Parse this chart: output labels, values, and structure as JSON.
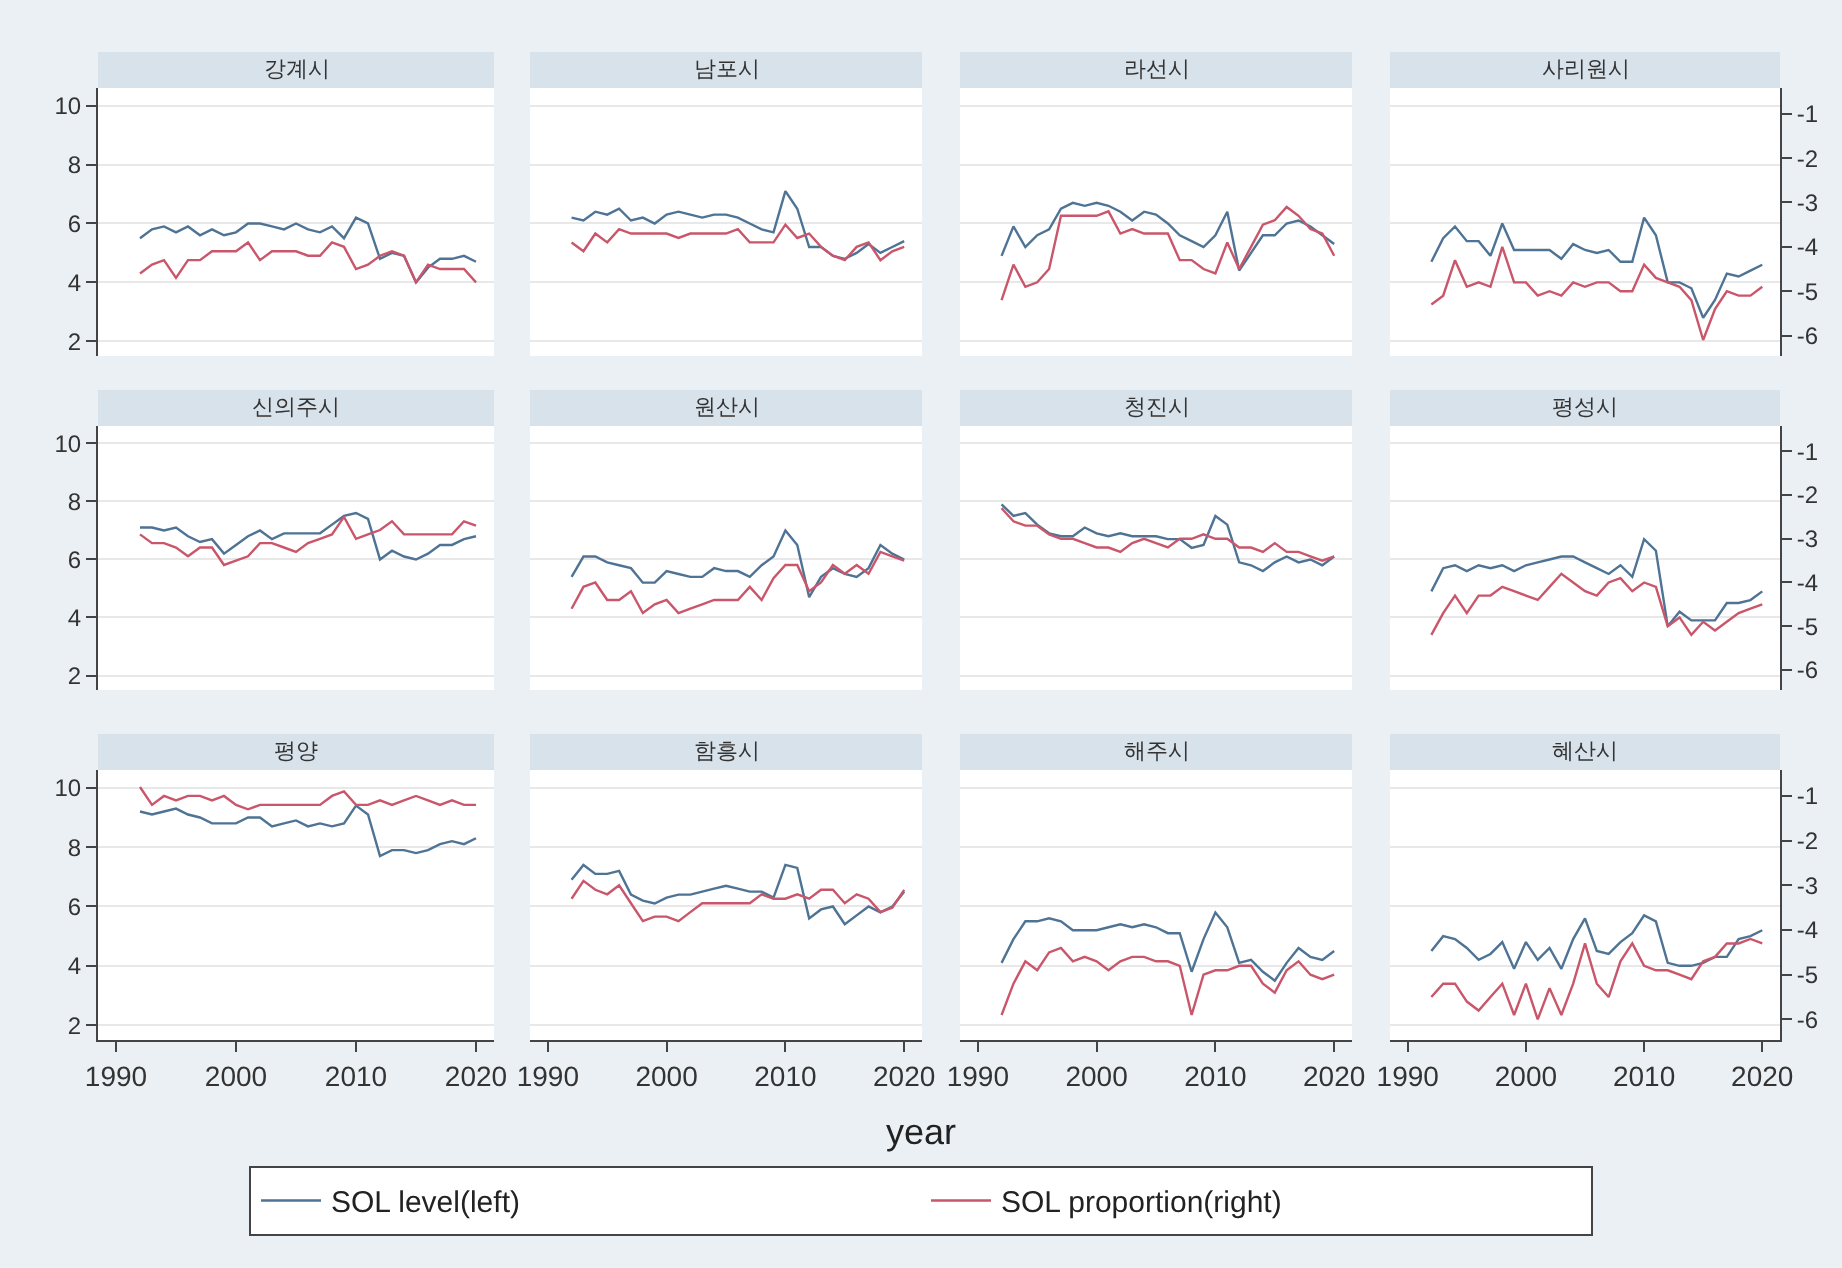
{
  "chart_data": [
    {
      "type": "line",
      "title": "강계시",
      "x": [
        1992,
        1993,
        1994,
        1995,
        1996,
        1997,
        1998,
        1999,
        2000,
        2001,
        2002,
        2003,
        2004,
        2005,
        2006,
        2007,
        2008,
        2009,
        2010,
        2011,
        2012,
        2013,
        2014,
        2015,
        2016,
        2017,
        2018,
        2019,
        2020
      ],
      "xlim": [
        1988.5,
        2021.5
      ],
      "xticks": [
        1990,
        2000,
        2010,
        2020
      ],
      "ylim": [
        1.5,
        10.6
      ],
      "yticks": [
        2,
        4,
        6,
        8,
        10
      ],
      "y2lim": [
        -6.46,
        -0.42
      ],
      "grid": "y",
      "tick_labels": "y",
      "legend": "bottom",
      "series": [
        {
          "name": "SOL level(left)",
          "color": "#4e7394",
          "values": [
            5.5,
            5.8,
            5.9,
            5.7,
            5.9,
            5.6,
            5.8,
            5.6,
            5.7,
            6.0,
            6.0,
            5.9,
            5.8,
            6.0,
            5.8,
            5.7,
            5.9,
            5.5,
            6.2,
            6.0,
            4.8,
            5.0,
            4.9,
            4.0,
            4.5,
            4.8,
            4.8,
            4.9,
            4.7
          ]
        },
        {
          "name": "SOL proportion(right)",
          "color": "#c9566a",
          "axis": "y2",
          "values": [
            -4.6,
            -4.4,
            -4.3,
            -4.7,
            -4.3,
            -4.3,
            -4.1,
            -4.1,
            -4.1,
            -3.9,
            -4.3,
            -4.1,
            -4.1,
            -4.1,
            -4.2,
            -4.2,
            -3.9,
            -4.0,
            -4.5,
            -4.4,
            -4.2,
            -4.1,
            -4.2,
            -4.8,
            -4.4,
            -4.5,
            -4.5,
            -4.5,
            -4.8
          ]
        }
      ]
    },
    {
      "type": "line",
      "title": "남포시",
      "x": [
        1992,
        1993,
        1994,
        1995,
        1996,
        1997,
        1998,
        1999,
        2000,
        2001,
        2002,
        2003,
        2004,
        2005,
        2006,
        2007,
        2008,
        2009,
        2010,
        2011,
        2012,
        2013,
        2014,
        2015,
        2016,
        2017,
        2018,
        2019,
        2020
      ],
      "xlim": [
        1988.5,
        2021.5
      ],
      "xticks": [
        1990,
        2000,
        2010,
        2020
      ],
      "ylim": [
        1.5,
        10.6
      ],
      "yticks": [
        2,
        4,
        6,
        8,
        10
      ],
      "y2lim": [
        -6.46,
        -0.42
      ],
      "grid": "y",
      "tick_labels": false,
      "series": [
        {
          "color": "#4e7394",
          "values": [
            6.2,
            6.1,
            6.4,
            6.3,
            6.5,
            6.1,
            6.2,
            6.0,
            6.3,
            6.4,
            6.3,
            6.2,
            6.3,
            6.3,
            6.2,
            6.0,
            5.8,
            5.7,
            7.1,
            6.5,
            5.2,
            5.2,
            4.9,
            4.8,
            5.0,
            5.3,
            5.0,
            5.2,
            5.4
          ]
        },
        {
          "color": "#c9566a",
          "axis": "y2",
          "values": [
            -3.9,
            -4.1,
            -3.7,
            -3.9,
            -3.6,
            -3.7,
            -3.7,
            -3.7,
            -3.7,
            -3.8,
            -3.7,
            -3.7,
            -3.7,
            -3.7,
            -3.6,
            -3.9,
            -3.9,
            -3.9,
            -3.5,
            -3.8,
            -3.7,
            -4.0,
            -4.2,
            -4.3,
            -4.0,
            -3.9,
            -4.3,
            -4.1,
            -4.0
          ]
        }
      ]
    },
    {
      "type": "line",
      "title": "라선시",
      "x": [
        1992,
        1993,
        1994,
        1995,
        1996,
        1997,
        1998,
        1999,
        2000,
        2001,
        2002,
        2003,
        2004,
        2005,
        2006,
        2007,
        2008,
        2009,
        2010,
        2011,
        2012,
        2013,
        2014,
        2015,
        2016,
        2017,
        2018,
        2019,
        2020
      ],
      "xlim": [
        1988.5,
        2021.5
      ],
      "xticks": [
        1990,
        2000,
        2010,
        2020
      ],
      "ylim": [
        1.5,
        10.6
      ],
      "yticks": [
        2,
        4,
        6,
        8,
        10
      ],
      "y2lim": [
        -6.46,
        -0.42
      ],
      "grid": "y",
      "tick_labels": false,
      "series": [
        {
          "color": "#4e7394",
          "values": [
            4.9,
            5.9,
            5.2,
            5.6,
            5.8,
            6.5,
            6.7,
            6.6,
            6.7,
            6.6,
            6.4,
            6.1,
            6.4,
            6.3,
            6.0,
            5.6,
            5.4,
            5.2,
            5.6,
            6.4,
            4.4,
            5.0,
            5.6,
            5.6,
            6.0,
            6.1,
            5.9,
            5.6,
            5.3
          ]
        },
        {
          "color": "#c9566a",
          "axis": "y2",
          "values": [
            -5.2,
            -4.4,
            -4.9,
            -4.8,
            -4.5,
            -3.3,
            -3.3,
            -3.3,
            -3.3,
            -3.2,
            -3.7,
            -3.6,
            -3.7,
            -3.7,
            -3.7,
            -4.3,
            -4.3,
            -4.5,
            -4.6,
            -3.9,
            -4.5,
            -4.0,
            -3.5,
            -3.4,
            -3.1,
            -3.3,
            -3.6,
            -3.7,
            -4.2
          ]
        }
      ]
    },
    {
      "type": "line",
      "title": "사리원시",
      "x": [
        1992,
        1993,
        1994,
        1995,
        1996,
        1997,
        1998,
        1999,
        2000,
        2001,
        2002,
        2003,
        2004,
        2005,
        2006,
        2007,
        2008,
        2009,
        2010,
        2011,
        2012,
        2013,
        2014,
        2015,
        2016,
        2017,
        2018,
        2019,
        2020
      ],
      "xlim": [
        1988.5,
        2021.5
      ],
      "xticks": [
        1990,
        2000,
        2010,
        2020
      ],
      "ylim": [
        1.5,
        10.6
      ],
      "y2lim": [
        -6.46,
        -0.42
      ],
      "y2ticks": [
        -6,
        -5,
        -4,
        -3,
        -2,
        -1
      ],
      "grid": "y",
      "tick_labels": "y",
      "series": [
        {
          "color": "#4e7394",
          "values": [
            4.7,
            5.5,
            5.9,
            5.4,
            5.4,
            4.9,
            6.0,
            5.1,
            5.1,
            5.1,
            5.1,
            4.8,
            5.3,
            5.1,
            5.0,
            5.1,
            4.7,
            4.7,
            6.2,
            5.6,
            4.0,
            4.0,
            3.8,
            2.8,
            3.4,
            4.3,
            4.2,
            4.4,
            4.6
          ]
        },
        {
          "color": "#c9566a",
          "axis": "y2",
          "values": [
            -5.3,
            -5.1,
            -4.3,
            -4.9,
            -4.8,
            -4.9,
            -4.0,
            -4.8,
            -4.8,
            -5.1,
            -5.0,
            -5.1,
            -4.8,
            -4.9,
            -4.8,
            -4.8,
            -5.0,
            -5.0,
            -4.4,
            -4.7,
            -4.8,
            -4.9,
            -5.2,
            -6.1,
            -5.4,
            -5.0,
            -5.1,
            -5.1,
            -4.9
          ]
        }
      ]
    },
    {
      "type": "line",
      "title": "신의주시",
      "x": [
        1992,
        1993,
        1994,
        1995,
        1996,
        1997,
        1998,
        1999,
        2000,
        2001,
        2002,
        2003,
        2004,
        2005,
        2006,
        2007,
        2008,
        2009,
        2010,
        2011,
        2012,
        2013,
        2014,
        2015,
        2016,
        2017,
        2018,
        2019,
        2020
      ],
      "xlim": [
        1988.5,
        2021.5
      ],
      "xticks": [
        1990,
        2000,
        2010,
        2020
      ],
      "ylim": [
        1.5,
        10.6
      ],
      "yticks": [
        2,
        4,
        6,
        8,
        10
      ],
      "y2lim": [
        -6.46,
        -0.42
      ],
      "grid": "y",
      "tick_labels": "y",
      "series": [
        {
          "color": "#4e7394",
          "values": [
            7.1,
            7.1,
            7.0,
            7.1,
            6.8,
            6.6,
            6.7,
            6.2,
            6.5,
            6.8,
            7.0,
            6.7,
            6.9,
            6.9,
            6.9,
            6.9,
            7.2,
            7.5,
            7.6,
            7.4,
            6.0,
            6.3,
            6.1,
            6.0,
            6.2,
            6.5,
            6.5,
            6.7,
            6.8
          ]
        },
        {
          "color": "#c9566a",
          "axis": "y2",
          "values": [
            -2.9,
            -3.1,
            -3.1,
            -3.2,
            -3.4,
            -3.2,
            -3.2,
            -3.6,
            -3.5,
            -3.4,
            -3.1,
            -3.1,
            -3.2,
            -3.3,
            -3.1,
            -3.0,
            -2.9,
            -2.5,
            -3.0,
            -2.9,
            -2.8,
            -2.6,
            -2.9,
            -2.9,
            -2.9,
            -2.9,
            -2.9,
            -2.6,
            -2.7
          ]
        }
      ]
    },
    {
      "type": "line",
      "title": "원산시",
      "x": [
        1992,
        1993,
        1994,
        1995,
        1996,
        1997,
        1998,
        1999,
        2000,
        2001,
        2002,
        2003,
        2004,
        2005,
        2006,
        2007,
        2008,
        2009,
        2010,
        2011,
        2012,
        2013,
        2014,
        2015,
        2016,
        2017,
        2018,
        2019,
        2020
      ],
      "xlim": [
        1988.5,
        2021.5
      ],
      "xticks": [
        1990,
        2000,
        2010,
        2020
      ],
      "ylim": [
        1.5,
        10.6
      ],
      "yticks": [
        2,
        4,
        6,
        8,
        10
      ],
      "y2lim": [
        -6.46,
        -0.42
      ],
      "grid": "y",
      "tick_labels": false,
      "series": [
        {
          "color": "#4e7394",
          "values": [
            5.4,
            6.1,
            6.1,
            5.9,
            5.8,
            5.7,
            5.2,
            5.2,
            5.6,
            5.5,
            5.4,
            5.4,
            5.7,
            5.6,
            5.6,
            5.4,
            5.8,
            6.1,
            7.0,
            6.5,
            4.7,
            5.4,
            5.7,
            5.5,
            5.4,
            5.7,
            6.5,
            6.2,
            6.0
          ]
        },
        {
          "color": "#c9566a",
          "axis": "y2",
          "values": [
            -4.6,
            -4.1,
            -4.0,
            -4.4,
            -4.4,
            -4.2,
            -4.7,
            -4.5,
            -4.4,
            -4.7,
            -4.6,
            -4.5,
            -4.4,
            -4.4,
            -4.4,
            -4.1,
            -4.4,
            -3.9,
            -3.6,
            -3.6,
            -4.2,
            -4.0,
            -3.6,
            -3.8,
            -3.6,
            -3.8,
            -3.3,
            -3.4,
            -3.5
          ]
        }
      ]
    },
    {
      "type": "line",
      "title": "청진시",
      "x": [
        1992,
        1993,
        1994,
        1995,
        1996,
        1997,
        1998,
        1999,
        2000,
        2001,
        2002,
        2003,
        2004,
        2005,
        2006,
        2007,
        2008,
        2009,
        2010,
        2011,
        2012,
        2013,
        2014,
        2015,
        2016,
        2017,
        2018,
        2019,
        2020
      ],
      "xlim": [
        1988.5,
        2021.5
      ],
      "xticks": [
        1990,
        2000,
        2010,
        2020
      ],
      "ylim": [
        1.5,
        10.6
      ],
      "yticks": [
        2,
        4,
        6,
        8,
        10
      ],
      "y2lim": [
        -6.46,
        -0.42
      ],
      "grid": "y",
      "tick_labels": false,
      "series": [
        {
          "color": "#4e7394",
          "values": [
            7.9,
            7.5,
            7.6,
            7.2,
            6.9,
            6.8,
            6.8,
            7.1,
            6.9,
            6.8,
            6.9,
            6.8,
            6.8,
            6.8,
            6.7,
            6.7,
            6.4,
            6.5,
            7.5,
            7.2,
            5.9,
            5.8,
            5.6,
            5.9,
            6.1,
            5.9,
            6.0,
            5.8,
            6.1
          ]
        },
        {
          "color": "#c9566a",
          "axis": "y2",
          "values": [
            -2.3,
            -2.6,
            -2.7,
            -2.7,
            -2.9,
            -3.0,
            -3.0,
            -3.1,
            -3.2,
            -3.2,
            -3.3,
            -3.1,
            -3.0,
            -3.1,
            -3.2,
            -3.0,
            -3.0,
            -2.9,
            -3.0,
            -3.0,
            -3.2,
            -3.2,
            -3.3,
            -3.1,
            -3.3,
            -3.3,
            -3.4,
            -3.5,
            -3.4
          ]
        }
      ]
    },
    {
      "type": "line",
      "title": "평성시",
      "x": [
        1992,
        1993,
        1994,
        1995,
        1996,
        1997,
        1998,
        1999,
        2000,
        2001,
        2002,
        2003,
        2004,
        2005,
        2006,
        2007,
        2008,
        2009,
        2010,
        2011,
        2012,
        2013,
        2014,
        2015,
        2016,
        2017,
        2018,
        2019,
        2020
      ],
      "xlim": [
        1988.5,
        2021.5
      ],
      "xticks": [
        1990,
        2000,
        2010,
        2020
      ],
      "ylim": [
        1.5,
        10.6
      ],
      "y2lim": [
        -6.46,
        -0.42
      ],
      "y2ticks": [
        -6,
        -5,
        -4,
        -3,
        -2,
        -1
      ],
      "grid": "y",
      "tick_labels": "y",
      "series": [
        {
          "color": "#4e7394",
          "values": [
            4.9,
            5.7,
            5.8,
            5.6,
            5.8,
            5.7,
            5.8,
            5.6,
            5.8,
            5.9,
            6.0,
            6.1,
            6.1,
            5.9,
            5.7,
            5.5,
            5.8,
            5.4,
            6.7,
            6.3,
            3.7,
            4.2,
            3.9,
            3.9,
            3.9,
            4.5,
            4.5,
            4.6,
            4.9
          ]
        },
        {
          "color": "#c9566a",
          "axis": "y2",
          "values": [
            -5.2,
            -4.7,
            -4.3,
            -4.7,
            -4.3,
            -4.3,
            -4.1,
            -4.2,
            -4.3,
            -4.4,
            -4.1,
            -3.8,
            -4.0,
            -4.2,
            -4.3,
            -4.0,
            -3.9,
            -4.2,
            -4.0,
            -4.1,
            -5.0,
            -4.8,
            -5.2,
            -4.9,
            -5.1,
            -4.9,
            -4.7,
            -4.6,
            -4.5
          ]
        }
      ]
    },
    {
      "type": "line",
      "title": "평양",
      "x": [
        1992,
        1993,
        1994,
        1995,
        1996,
        1997,
        1998,
        1999,
        2000,
        2001,
        2002,
        2003,
        2004,
        2005,
        2006,
        2007,
        2008,
        2009,
        2010,
        2011,
        2012,
        2013,
        2014,
        2015,
        2016,
        2017,
        2018,
        2019,
        2020
      ],
      "xlim": [
        1988.5,
        2021.5
      ],
      "xticks": [
        1990,
        2000,
        2010,
        2020
      ],
      "ylim": [
        1.5,
        10.6
      ],
      "yticks": [
        2,
        4,
        6,
        8,
        10
      ],
      "y2lim": [
        -6.46,
        -0.42
      ],
      "grid": "y",
      "series": [
        {
          "color": "#4e7394",
          "values": [
            9.2,
            9.1,
            9.2,
            9.3,
            9.1,
            9.0,
            8.8,
            8.8,
            8.8,
            9.0,
            9.0,
            8.7,
            8.8,
            8.9,
            8.7,
            8.8,
            8.7,
            8.8,
            9.4,
            9.1,
            7.7,
            7.9,
            7.9,
            7.8,
            7.9,
            8.1,
            8.2,
            8.1,
            8.3
          ]
        },
        {
          "color": "#c9566a",
          "axis": "y2",
          "values": [
            -0.8,
            -1.2,
            -1.0,
            -1.1,
            -1.0,
            -1.0,
            -1.1,
            -1.0,
            -1.2,
            -1.3,
            -1.2,
            -1.2,
            -1.2,
            -1.2,
            -1.2,
            -1.2,
            -1.0,
            -0.9,
            -1.2,
            -1.2,
            -1.1,
            -1.2,
            -1.1,
            -1.0,
            -1.1,
            -1.2,
            -1.1,
            -1.2,
            -1.2
          ]
        }
      ]
    },
    {
      "type": "line",
      "title": "함흥시",
      "xlabel": "year",
      "x": [
        1992,
        1993,
        1994,
        1995,
        1996,
        1997,
        1998,
        1999,
        2000,
        2001,
        2002,
        2003,
        2004,
        2005,
        2006,
        2007,
        2008,
        2009,
        2010,
        2011,
        2012,
        2013,
        2014,
        2015,
        2016,
        2017,
        2018,
        2019,
        2020
      ],
      "xlim": [
        1988.5,
        2021.5
      ],
      "xticks": [
        1990,
        2000,
        2010,
        2020
      ],
      "ylim": [
        1.5,
        10.6
      ],
      "yticks": [
        2,
        4,
        6,
        8,
        10
      ],
      "y2lim": [
        -6.46,
        -0.42
      ],
      "grid": "y",
      "tick_labels": "x",
      "series": [
        {
          "color": "#4e7394",
          "values": [
            6.9,
            7.4,
            7.1,
            7.1,
            7.2,
            6.4,
            6.2,
            6.1,
            6.3,
            6.4,
            6.4,
            6.5,
            6.6,
            6.7,
            6.6,
            6.5,
            6.5,
            6.3,
            7.4,
            7.3,
            5.6,
            5.9,
            6.0,
            5.4,
            5.7,
            6.0,
            5.8,
            6.0,
            6.5
          ]
        },
        {
          "color": "#c9566a",
          "axis": "y2",
          "values": [
            -3.3,
            -2.9,
            -3.1,
            -3.2,
            -3.0,
            -3.4,
            -3.8,
            -3.7,
            -3.7,
            -3.8,
            -3.6,
            -3.4,
            -3.4,
            -3.4,
            -3.4,
            -3.4,
            -3.2,
            -3.3,
            -3.3,
            -3.2,
            -3.3,
            -3.1,
            -3.1,
            -3.4,
            -3.2,
            -3.3,
            -3.6,
            -3.5,
            -3.1
          ]
        }
      ]
    },
    {
      "type": "line",
      "title": "해주시",
      "x": [
        1992,
        1993,
        1994,
        1995,
        1996,
        1997,
        1998,
        1999,
        2000,
        2001,
        2002,
        2003,
        2004,
        2005,
        2006,
        2007,
        2008,
        2009,
        2010,
        2011,
        2012,
        2013,
        2014,
        2015,
        2016,
        2017,
        2018,
        2019,
        2020
      ],
      "xlim": [
        1988.5,
        2021.5
      ],
      "xticks": [
        1990,
        2000,
        2010,
        2020
      ],
      "ylim": [
        1.5,
        10.6
      ],
      "yticks": [
        2,
        4,
        6,
        8,
        10
      ],
      "y2lim": [
        -6.46,
        -0.42
      ],
      "grid": "y",
      "tick_labels": "x",
      "series": [
        {
          "color": "#4e7394",
          "values": [
            4.1,
            4.9,
            5.5,
            5.5,
            5.6,
            5.5,
            5.2,
            5.2,
            5.2,
            5.3,
            5.4,
            5.3,
            5.4,
            5.3,
            5.1,
            5.1,
            3.8,
            4.9,
            5.8,
            5.3,
            4.1,
            4.2,
            3.8,
            3.5,
            4.1,
            4.6,
            4.3,
            4.2,
            4.5
          ]
        },
        {
          "color": "#c9566a",
          "axis": "y2",
          "values": [
            -5.9,
            -5.2,
            -4.7,
            -4.9,
            -4.5,
            -4.4,
            -4.7,
            -4.6,
            -4.7,
            -4.9,
            -4.7,
            -4.6,
            -4.6,
            -4.7,
            -4.7,
            -4.8,
            -5.9,
            -5.0,
            -4.9,
            -4.9,
            -4.8,
            -4.8,
            -5.2,
            -5.4,
            -4.9,
            -4.7,
            -5.0,
            -5.1,
            -5.0
          ]
        }
      ]
    },
    {
      "type": "line",
      "title": "혜산시",
      "x": [
        1992,
        1993,
        1994,
        1995,
        1996,
        1997,
        1998,
        1999,
        2000,
        2001,
        2002,
        2003,
        2004,
        2005,
        2006,
        2007,
        2008,
        2009,
        2010,
        2011,
        2012,
        2013,
        2014,
        2015,
        2016,
        2017,
        2018,
        2019,
        2020
      ],
      "xlim": [
        1988.5,
        2021.5
      ],
      "xticks": [
        1990,
        2000,
        2010,
        2020
      ],
      "ylim": [
        1.5,
        10.6
      ],
      "y2lim": [
        -6.46,
        -0.42
      ],
      "y2ticks": [
        -6,
        -5,
        -4,
        -3,
        -2,
        -1
      ],
      "grid": "y",
      "series": [
        {
          "color": "#4e7394",
          "values": [
            4.5,
            5.0,
            4.9,
            4.6,
            4.2,
            4.4,
            4.8,
            3.9,
            4.8,
            4.2,
            4.6,
            3.9,
            4.9,
            5.6,
            4.5,
            4.4,
            4.8,
            5.1,
            5.7,
            5.5,
            4.1,
            4.0,
            4.0,
            4.1,
            4.3,
            4.3,
            4.9,
            5.0,
            5.2
          ]
        },
        {
          "color": "#c9566a",
          "axis": "y2",
          "values": [
            -5.5,
            -5.2,
            -5.2,
            -5.6,
            -5.8,
            -5.5,
            -5.2,
            -5.9,
            -5.2,
            -6.0,
            -5.3,
            -5.9,
            -5.2,
            -4.3,
            -5.2,
            -5.5,
            -4.7,
            -4.3,
            -4.8,
            -4.9,
            -4.9,
            -5.0,
            -5.1,
            -4.7,
            -4.6,
            -4.3,
            -4.3,
            -4.2,
            -4.3
          ]
        }
      ]
    }
  ]
}
